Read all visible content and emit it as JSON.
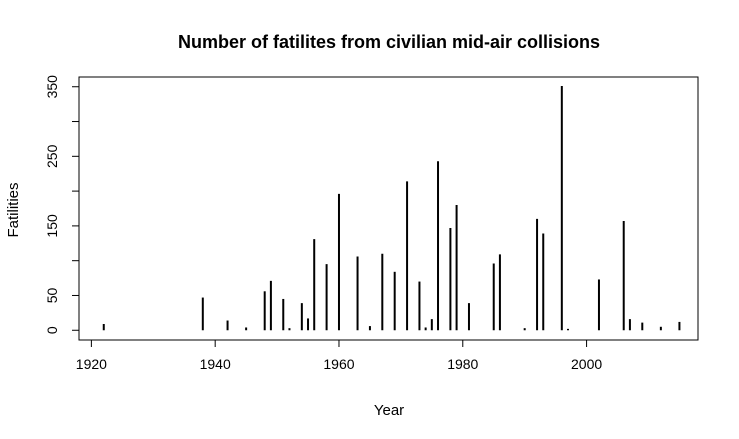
{
  "chart_data": {
    "type": "bar",
    "title": "Number of fatilites from civilian mid-air collisions",
    "xlabel": "Year",
    "ylabel": "Fatilities",
    "xlim": [
      1918,
      2018
    ],
    "ylim": [
      -14,
      364
    ],
    "xticks": [
      1920,
      1940,
      1960,
      1980,
      2000
    ],
    "yticks": [
      0,
      50,
      100,
      150,
      200,
      250,
      300,
      350
    ],
    "ytick_labels": [
      "0",
      "50",
      "",
      "150",
      "",
      "250",
      "",
      "350"
    ],
    "grid": false,
    "x": [
      1922,
      1938,
      1942,
      1945,
      1948,
      1949,
      1951,
      1952,
      1954,
      1955,
      1956,
      1958,
      1960,
      1963,
      1965,
      1967,
      1969,
      1971,
      1973,
      1974,
      1975,
      1976,
      1978,
      1979,
      1981,
      1985,
      1986,
      1990,
      1992,
      1993,
      1996,
      1997,
      2002,
      2006,
      2007,
      2009,
      2012,
      2015
    ],
    "values": [
      9,
      47,
      14,
      4,
      56,
      71,
      45,
      3,
      39,
      17,
      131,
      95,
      196,
      106,
      6,
      110,
      84,
      214,
      70,
      4,
      16,
      243,
      147,
      180,
      39,
      96,
      109,
      3,
      160,
      139,
      351,
      2,
      73,
      157,
      16,
      11,
      5,
      12
    ]
  }
}
